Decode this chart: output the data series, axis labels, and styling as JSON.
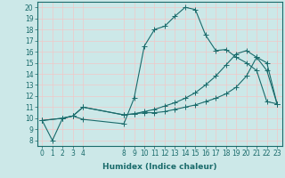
{
  "xlabel": "Humidex (Indice chaleur)",
  "bg_color": "#cce8e8",
  "line_color": "#1a6b6b",
  "grid_color": "#f0c8c8",
  "xlim": [
    -0.5,
    23.5
  ],
  "ylim": [
    7.5,
    20.5
  ],
  "yticks": [
    8,
    9,
    10,
    11,
    12,
    13,
    14,
    15,
    16,
    17,
    18,
    19,
    20
  ],
  "xticks": [
    0,
    1,
    2,
    3,
    4,
    8,
    9,
    10,
    11,
    12,
    13,
    14,
    15,
    16,
    17,
    18,
    19,
    20,
    21,
    22,
    23
  ],
  "line1_x": [
    0,
    1,
    2,
    3,
    4,
    8,
    9,
    10,
    11,
    12,
    13,
    14,
    15,
    16,
    17,
    18,
    19,
    20,
    21,
    22,
    23
  ],
  "line1_y": [
    9.8,
    8.0,
    10.0,
    10.2,
    9.9,
    9.5,
    11.8,
    16.5,
    18.0,
    18.3,
    19.2,
    20.0,
    19.8,
    17.5,
    16.1,
    16.2,
    15.5,
    15.0,
    14.3,
    11.5,
    11.3
  ],
  "line2_x": [
    0,
    2,
    3,
    4,
    8,
    9,
    10,
    11,
    12,
    13,
    14,
    15,
    16,
    17,
    18,
    19,
    20,
    21,
    22,
    23
  ],
  "line2_y": [
    9.8,
    10.0,
    10.2,
    11.0,
    10.3,
    10.4,
    10.5,
    10.5,
    10.6,
    10.8,
    11.0,
    11.2,
    11.5,
    11.8,
    12.2,
    12.8,
    13.8,
    15.5,
    15.0,
    11.3
  ],
  "line3_x": [
    0,
    2,
    3,
    4,
    8,
    9,
    10,
    11,
    12,
    13,
    14,
    15,
    16,
    17,
    18,
    19,
    20,
    21,
    22,
    23
  ],
  "line3_y": [
    9.8,
    10.0,
    10.2,
    11.0,
    10.3,
    10.4,
    10.6,
    10.8,
    11.1,
    11.4,
    11.8,
    12.3,
    13.0,
    13.8,
    14.8,
    15.8,
    16.1,
    15.5,
    14.3,
    11.3
  ],
  "marker_size": 3,
  "linewidth": 0.8,
  "label_fontsize": 6.5,
  "tick_fontsize": 5.5
}
